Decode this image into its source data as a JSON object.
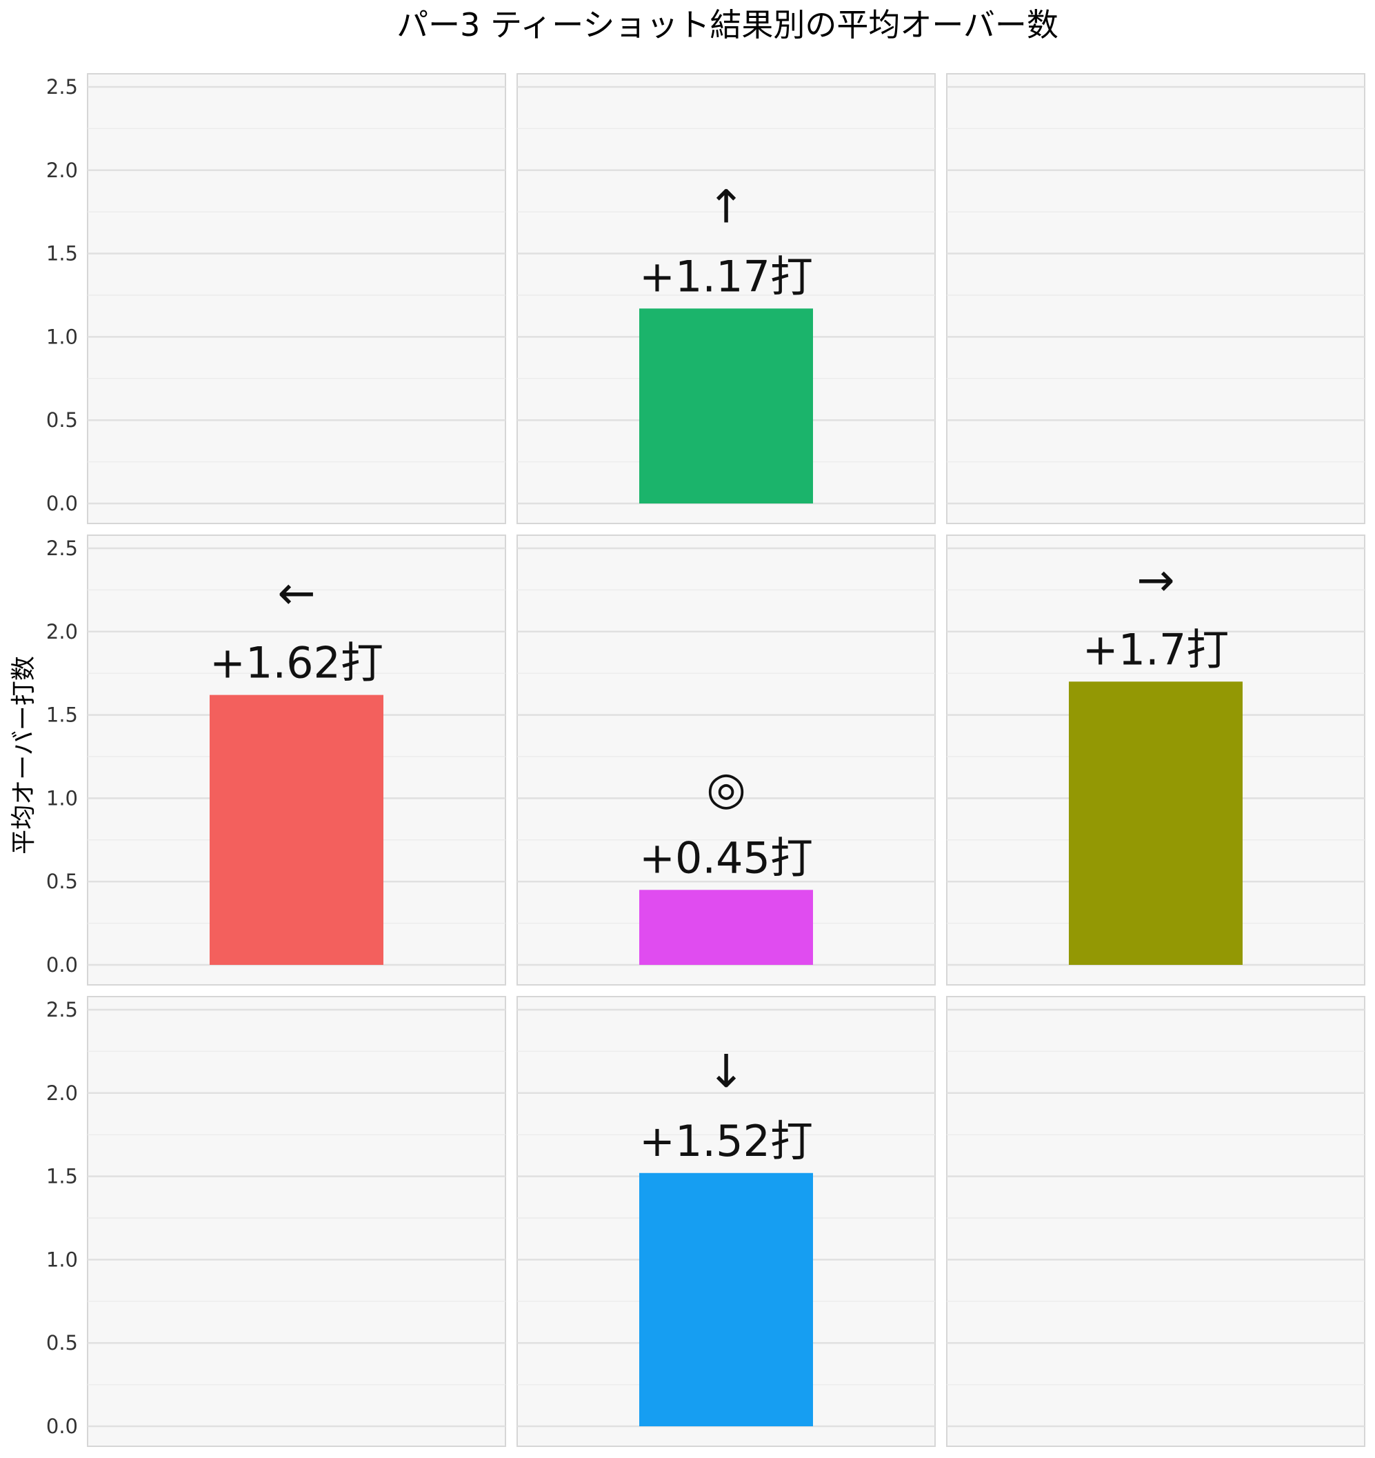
{
  "chart_data": {
    "type": "bar",
    "title": "パー3 ティーショット結果別の平均オーバー数",
    "ylabel": "平均オーバー打数",
    "ylim": [
      0,
      2.6
    ],
    "yticks": [
      "0.0",
      "0.5",
      "1.0",
      "1.5",
      "2.0",
      "2.5"
    ],
    "grid": true,
    "layout": "3x3 facet grid",
    "panels": [
      {
        "row": 0,
        "col": 0
      },
      {
        "row": 0,
        "col": 1,
        "symbol": "↑",
        "value": 1.17,
        "label": "+1.17打",
        "color": "#1bb46b"
      },
      {
        "row": 0,
        "col": 2
      },
      {
        "row": 1,
        "col": 0,
        "symbol": "←",
        "value": 1.62,
        "label": "+1.62打",
        "color": "#f3605d"
      },
      {
        "row": 1,
        "col": 1,
        "symbol": "◎",
        "value": 0.45,
        "label": "+0.45打",
        "color": "#e04cf0"
      },
      {
        "row": 1,
        "col": 2,
        "symbol": "→",
        "value": 1.7,
        "label": "+1.7打",
        "color": "#939804"
      },
      {
        "row": 2,
        "col": 0
      },
      {
        "row": 2,
        "col": 1,
        "symbol": "↓",
        "value": 1.52,
        "label": "+1.52打",
        "color": "#169ef2"
      },
      {
        "row": 2,
        "col": 2
      }
    ]
  }
}
